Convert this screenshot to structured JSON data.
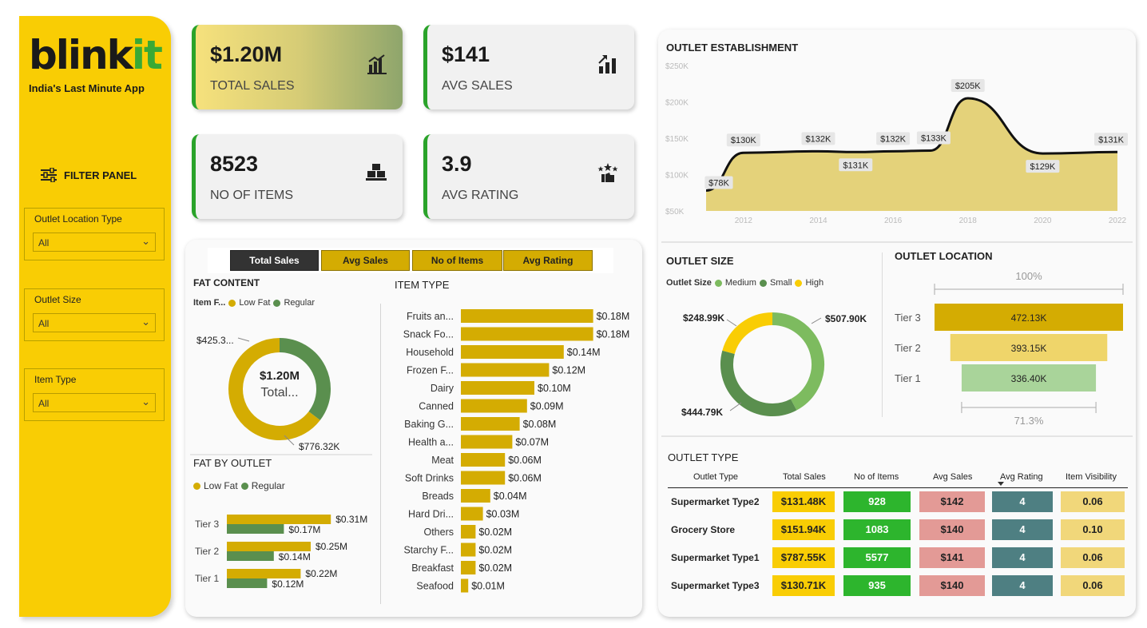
{
  "brand": {
    "name_main": "blink",
    "name_accent": "it",
    "tagline": "India's Last Minute App"
  },
  "sidebar": {
    "filter_title": "FILTER PANEL",
    "slicers": [
      {
        "label": "Outlet Location Type",
        "value": "All"
      },
      {
        "label": "Outlet Size",
        "value": "All"
      },
      {
        "label": "Item Type",
        "value": "All"
      }
    ]
  },
  "kpis": [
    {
      "value": "$1.20M",
      "label": "TOTAL SALES",
      "icon": "bar-chart-icon"
    },
    {
      "value": "$141",
      "label": "AVG SALES",
      "icon": "growth-chart-icon"
    },
    {
      "value": "8523",
      "label": "NO OF ITEMS",
      "icon": "boxes-icon"
    },
    {
      "value": "3.9",
      "label": "AVG RATING",
      "icon": "rating-hand-icon"
    }
  ],
  "tabs": [
    "Total Sales",
    "Avg Sales",
    "No of Items",
    "Avg Rating"
  ],
  "fat_content": {
    "title": "FAT CONTENT",
    "legend_title": "Item F...",
    "legend": [
      "Low Fat",
      "Regular"
    ],
    "center_value": "$1.20M",
    "center_label": "Total...",
    "label_regular": "$425.3...",
    "label_lowfat": "$776.32K"
  },
  "fat_by_outlet": {
    "title": "FAT BY OUTLET",
    "legend": [
      "Low Fat",
      "Regular"
    ]
  },
  "item_type": {
    "title": "ITEM TYPE"
  },
  "outlet_establishment": {
    "title": "OUTLET ESTABLISHMENT"
  },
  "outlet_size": {
    "title": "OUTLET SIZE",
    "legend_title": "Outlet Size",
    "legend": [
      "Medium",
      "Small",
      "High"
    ]
  },
  "outlet_location": {
    "title": "OUTLET LOCATION",
    "top_pct": "100%",
    "bottom_pct": "71.3%"
  },
  "outlet_type": {
    "title": "OUTLET TYPE",
    "columns": [
      "Outlet Type",
      "Total Sales",
      "No of Items",
      "Avg Sales",
      "Avg Rating",
      "Item Visibility"
    ],
    "rows": [
      {
        "type": "Supermarket Type2",
        "sales": "$131.48K",
        "items": "928",
        "avg": "$142",
        "rating": "4",
        "vis": "0.06"
      },
      {
        "type": "Grocery Store",
        "sales": "$151.94K",
        "items": "1083",
        "avg": "$140",
        "rating": "4",
        "vis": "0.10"
      },
      {
        "type": "Supermarket Type1",
        "sales": "$787.55K",
        "items": "5577",
        "avg": "$141",
        "rating": "4",
        "vis": "0.06"
      },
      {
        "type": "Supermarket Type3",
        "sales": "$130.71K",
        "items": "935",
        "avg": "$140",
        "rating": "4",
        "vis": "0.06"
      }
    ]
  },
  "colors": {
    "gold": "#d4ac02",
    "green": "#5a8f4e",
    "lightgreen": "#7dbb5f",
    "yellow": "#f9cd04",
    "area": "#e4d27a"
  },
  "chart_data": [
    {
      "type": "bar",
      "title": "ITEM TYPE",
      "categories": [
        "Fruits an...",
        "Snack Fo...",
        "Household",
        "Frozen F...",
        "Dairy",
        "Canned",
        "Baking G...",
        "Health a...",
        "Meat",
        "Soft Drinks",
        "Breads",
        "Hard Dri...",
        "Others",
        "Starchy F...",
        "Breakfast",
        "Seafood"
      ],
      "values": [
        0.18,
        0.18,
        0.14,
        0.12,
        0.1,
        0.09,
        0.08,
        0.07,
        0.06,
        0.06,
        0.04,
        0.03,
        0.02,
        0.02,
        0.02,
        0.01
      ],
      "labels": [
        "$0.18M",
        "$0.18M",
        "$0.14M",
        "$0.12M",
        "$0.10M",
        "$0.09M",
        "$0.08M",
        "$0.07M",
        "$0.06M",
        "$0.06M",
        "$0.04M",
        "$0.03M",
        "$0.02M",
        "$0.02M",
        "$0.02M",
        "$0.01M"
      ]
    },
    {
      "type": "bar",
      "title": "FAT BY OUTLET",
      "categories": [
        "Tier 3",
        "Tier 2",
        "Tier 1"
      ],
      "series": [
        {
          "name": "Low Fat",
          "values": [
            0.31,
            0.25,
            0.22
          ],
          "labels": [
            "$0.31M",
            "$0.25M",
            "$0.22M"
          ]
        },
        {
          "name": "Regular",
          "values": [
            0.17,
            0.14,
            0.12
          ],
          "labels": [
            "$0.17M",
            "$0.14M",
            "$0.12M"
          ]
        }
      ]
    },
    {
      "type": "pie",
      "title": "FAT CONTENT",
      "categories": [
        "Low Fat",
        "Regular"
      ],
      "values": [
        776.32,
        425.3
      ]
    },
    {
      "type": "area",
      "title": "OUTLET ESTABLISHMENT",
      "x": [
        2011,
        2012,
        2014,
        2015,
        2016,
        2017,
        2018,
        2020,
        2022
      ],
      "values": [
        78,
        130,
        132,
        131,
        132,
        133,
        205,
        129,
        131
      ],
      "labels": [
        "$78K",
        "$130K",
        "$132K",
        "$131K",
        "$132K",
        "$133K",
        "$205K",
        "$129K",
        "$131K"
      ],
      "xticks": [
        "2012",
        "2014",
        "2016",
        "2018",
        "2020",
        "2022"
      ],
      "yticks": [
        "$250K",
        "$200K",
        "$150K",
        "$100K",
        "$50K"
      ],
      "ylim": [
        50,
        250
      ]
    },
    {
      "type": "pie",
      "title": "OUTLET SIZE",
      "categories": [
        "Medium",
        "Small",
        "High"
      ],
      "values": [
        507.9,
        444.79,
        248.99
      ],
      "labels": [
        "$507.90K",
        "$444.79K",
        "$248.99K"
      ]
    },
    {
      "type": "bar",
      "title": "OUTLET LOCATION",
      "categories": [
        "Tier 3",
        "Tier 2",
        "Tier 1"
      ],
      "values": [
        472.13,
        393.15,
        336.4
      ],
      "labels": [
        "472.13K",
        "393.15K",
        "336.40K"
      ]
    }
  ]
}
